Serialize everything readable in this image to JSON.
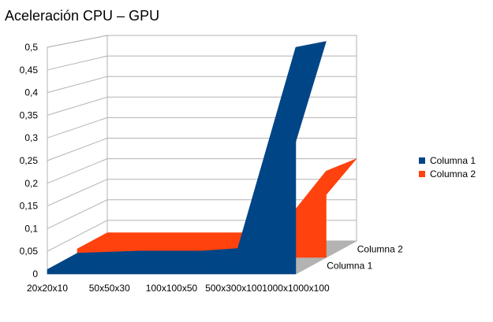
{
  "chart_data": {
    "type": "area",
    "title": "Aceleración CPU – GPU",
    "categories": [
      "20x20x10",
      "50x50x30",
      "100x100x50",
      "500x300x100",
      "1000x1000x100"
    ],
    "series": [
      {
        "name": "Columna 1",
        "color": "#004586",
        "values": [
          0.01,
          0.015,
          0.015,
          0.025,
          0.5
        ]
      },
      {
        "name": "Columna 2",
        "color": "#ff420e",
        "values": [
          0.02,
          0.02,
          0.02,
          0.02,
          0.2
        ]
      }
    ],
    "depth_labels": [
      "Columna 2",
      "Columna 1"
    ],
    "y_ticks": [
      "0",
      "0,05",
      "0,1",
      "0,15",
      "0,2",
      "0,25",
      "0,3",
      "0,35",
      "0,4",
      "0,45",
      "0,5"
    ],
    "ylim": [
      0,
      0.5
    ],
    "grid": true,
    "legend_position": "right",
    "style": "3d"
  }
}
